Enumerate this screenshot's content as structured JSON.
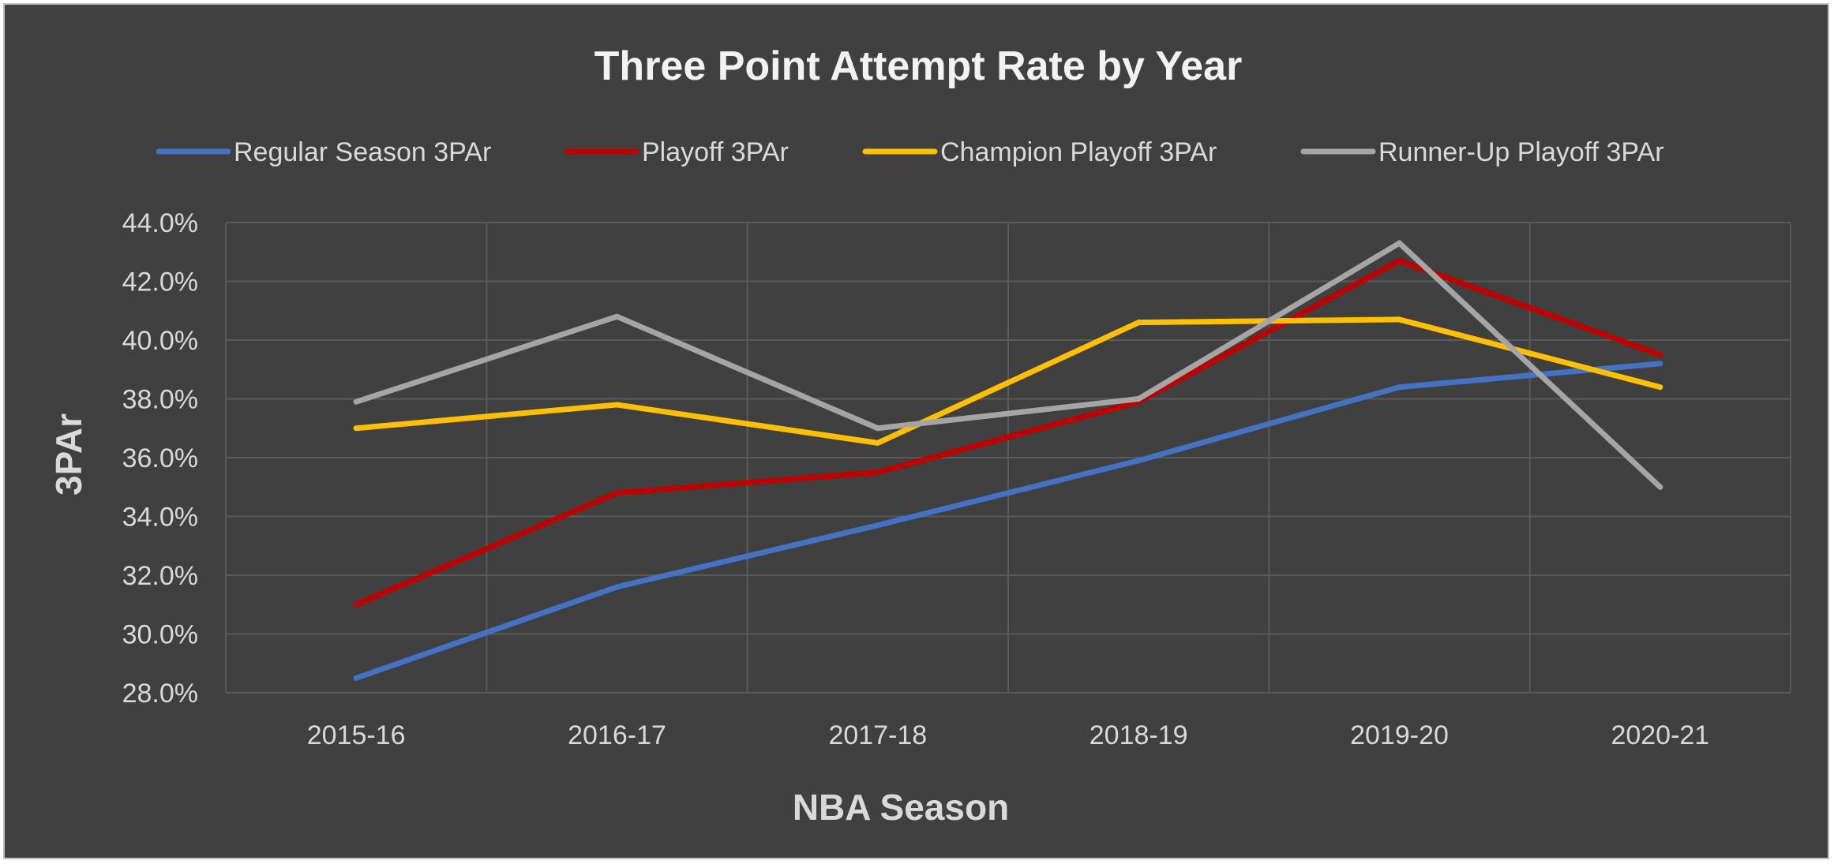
{
  "chart_data": {
    "type": "line",
    "title": "Three Point Attempt Rate by Year",
    "xlabel": "NBA Season",
    "ylabel": "3PAr",
    "categories": [
      "2015-16",
      "2016-17",
      "2017-18",
      "2018-19",
      "2019-20",
      "2020-21"
    ],
    "ylim": [
      0.28,
      0.44
    ],
    "yticks": [
      0.28,
      0.3,
      0.32,
      0.34,
      0.36,
      0.38,
      0.4,
      0.42,
      0.44
    ],
    "ytick_labels": [
      "28.0%",
      "30.0%",
      "32.0%",
      "34.0%",
      "36.0%",
      "38.0%",
      "40.0%",
      "42.0%",
      "44.0%"
    ],
    "grid": true,
    "legend_position": "top",
    "series": [
      {
        "name": "Regular Season 3PAr",
        "color": "#4472c4",
        "values": [
          0.285,
          0.316,
          0.337,
          0.359,
          0.384,
          0.392
        ]
      },
      {
        "name": "Playoff 3PAr",
        "color": "#c00000",
        "values": [
          0.31,
          0.348,
          0.355,
          0.379,
          0.427,
          0.395
        ]
      },
      {
        "name": "Champion Playoff 3PAr",
        "color": "#ffc000",
        "values": [
          0.37,
          0.378,
          0.365,
          0.406,
          0.407,
          0.384
        ]
      },
      {
        "name": "Runner-Up Playoff 3PAr",
        "color": "#a5a5a5",
        "values": [
          0.379,
          0.408,
          0.37,
          0.38,
          0.433,
          0.35
        ]
      }
    ]
  }
}
